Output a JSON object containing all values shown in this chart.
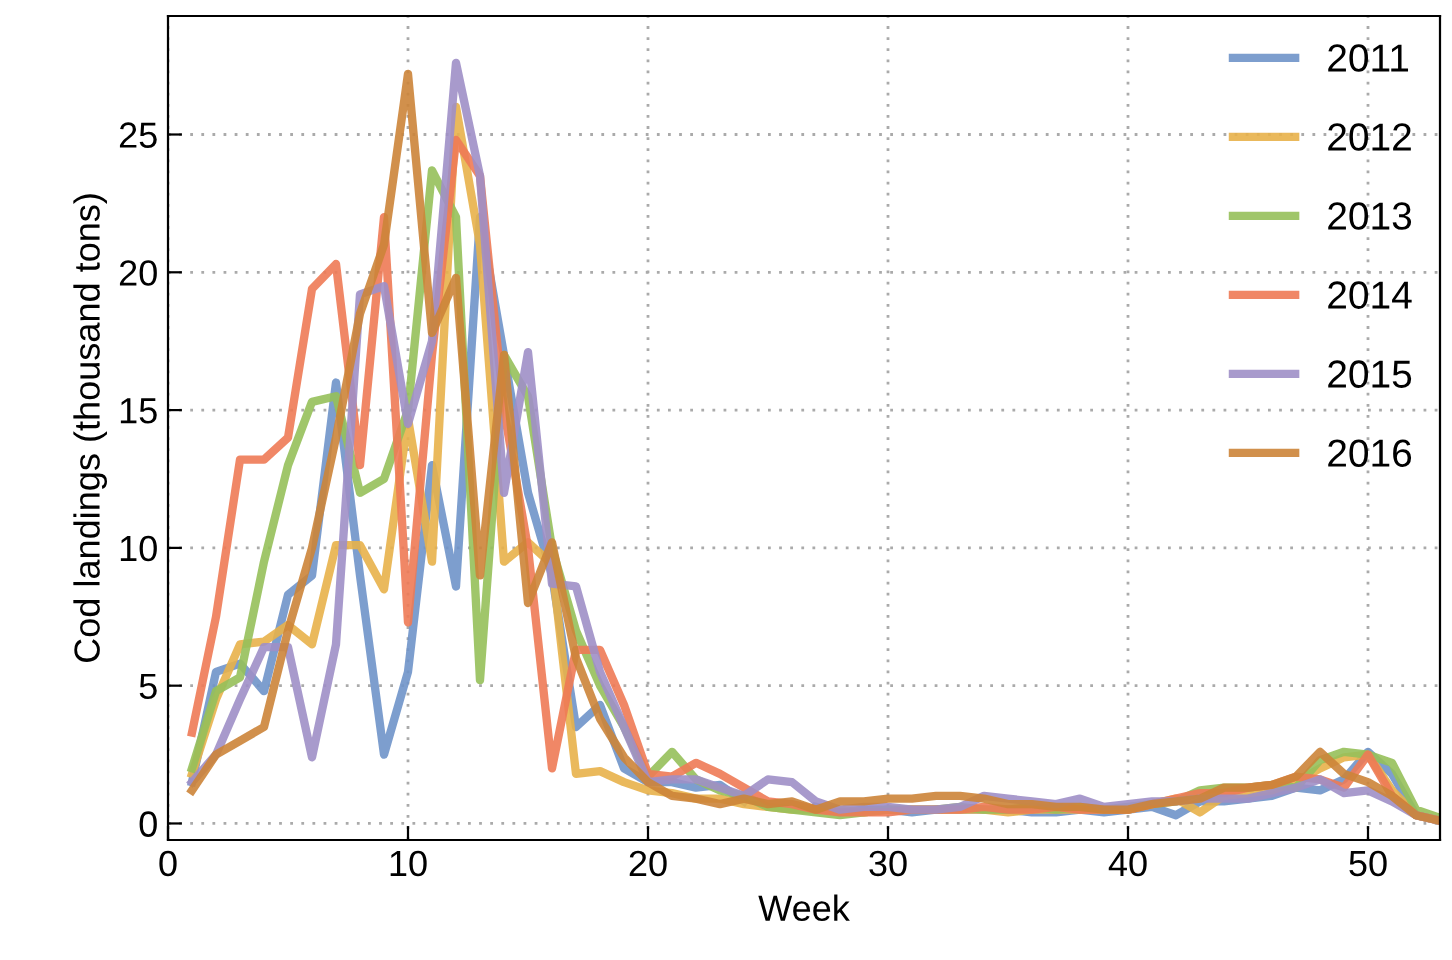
{
  "chart_data": {
    "type": "line",
    "xlabel": "Week",
    "ylabel": "Cod landings (thousand tons)",
    "x": [
      1,
      2,
      3,
      4,
      5,
      6,
      7,
      8,
      9,
      10,
      11,
      12,
      13,
      14,
      15,
      16,
      17,
      18,
      19,
      20,
      21,
      22,
      23,
      24,
      25,
      26,
      27,
      28,
      29,
      30,
      31,
      32,
      33,
      34,
      35,
      36,
      37,
      38,
      39,
      40,
      41,
      42,
      43,
      44,
      45,
      46,
      47,
      48,
      49,
      50,
      51,
      52,
      53
    ],
    "xlim": [
      0,
      53
    ],
    "ylim": [
      -0.6,
      29.3
    ],
    "xticks": [
      0,
      10,
      20,
      30,
      40,
      50
    ],
    "yticks": [
      0,
      5,
      10,
      15,
      20,
      25
    ],
    "grid": true,
    "legend": "top right",
    "line_style": "solid",
    "marker": "none",
    "series": [
      {
        "name": "2011",
        "color": "#6f93c9",
        "values": [
          1.5,
          5.5,
          5.8,
          4.8,
          8.3,
          9,
          16,
          9,
          2.5,
          5.5,
          13,
          8.6,
          22,
          17,
          12,
          9,
          3.5,
          4.3,
          2,
          1.5,
          1.5,
          1.3,
          1.4,
          0.8,
          null,
          null,
          0.6,
          0.4,
          0.5,
          0.5,
          0.4,
          0.5,
          0.5,
          0.5,
          0.5,
          0.4,
          0.4,
          0.5,
          0.4,
          0.5,
          0.6,
          0.3,
          0.8,
          0.8,
          0.9,
          1.0,
          1.3,
          1.2,
          1.6,
          2.6,
          1.8,
          0.3,
          0.1
        ]
      },
      {
        "name": "2012",
        "color": "#e8b14a",
        "values": [
          1.8,
          4.5,
          6.5,
          6.6,
          7.2,
          6.5,
          10.1,
          10.1,
          8.5,
          14.7,
          9.5,
          26,
          21,
          9.5,
          10.2,
          9.4,
          1.8,
          1.9,
          1.5,
          1.2,
          1.1,
          0.9,
          0.9,
          0.7,
          0.6,
          0.5,
          0.5,
          0.5,
          0.4,
          0.5,
          0.5,
          0.5,
          0.5,
          0.5,
          0.4,
          0.5,
          0.5,
          0.5,
          0.5,
          0.5,
          0.7,
          0.9,
          0.4,
          1.0,
          1.1,
          1.2,
          1.5,
          2.0,
          2.4,
          2.5,
          1.2,
          0.3,
          0.1
        ]
      },
      {
        "name": "2013",
        "color": "#96c05a",
        "values": [
          2,
          4.8,
          5.3,
          9.5,
          13,
          15.3,
          15.5,
          12,
          12.5,
          15,
          23.7,
          22,
          5.2,
          17,
          15.5,
          10,
          7,
          5,
          3.5,
          1.7,
          2.6,
          1.6,
          1.2,
          1.0,
          0.6,
          0.5,
          0.4,
          0.3,
          0.4,
          0.5,
          0.5,
          0.5,
          0.6,
          0.5,
          0.5,
          0.6,
          0.5,
          0.6,
          0.5,
          0.6,
          0.7,
          0.8,
          1.2,
          1.3,
          1.3,
          1.4,
          1.3,
          2.3,
          2.6,
          2.5,
          2.2,
          0.5,
          0.2
        ]
      },
      {
        "name": "2014",
        "color": "#ee7a55",
        "values": [
          3.3,
          7.5,
          13.2,
          13.2,
          14,
          19.4,
          20.3,
          13,
          22,
          7.3,
          17,
          24.8,
          23.5,
          15,
          10,
          2,
          6.3,
          6.3,
          4.3,
          1.8,
          1.7,
          2.2,
          1.8,
          1.3,
          0.8,
          0.7,
          0.5,
          0.4,
          0.4,
          0.4,
          0.5,
          0.5,
          0.5,
          0.6,
          0.5,
          0.5,
          0.6,
          0.5,
          0.5,
          0.5,
          0.7,
          0.9,
          1.1,
          1.1,
          1.3,
          1.4,
          1.7,
          1.6,
          1.3,
          2.5,
          1.0,
          0.3,
          0.1
        ]
      },
      {
        "name": "2015",
        "color": "#9e8fc6",
        "values": [
          1.5,
          2.5,
          4.5,
          6.4,
          6.4,
          2.4,
          6.5,
          19.2,
          19.5,
          14.5,
          17.5,
          27.6,
          23.5,
          12,
          17.1,
          8.7,
          8.6,
          5.5,
          3.5,
          1.5,
          1.6,
          1.6,
          1.3,
          1.0,
          1.6,
          1.5,
          0.8,
          0.5,
          0.6,
          0.6,
          0.5,
          0.5,
          0.6,
          1.0,
          0.9,
          0.8,
          0.7,
          0.9,
          0.6,
          0.7,
          0.8,
          0.8,
          0.9,
          0.9,
          0.9,
          1.1,
          1.3,
          1.6,
          1.1,
          1.2,
          0.8,
          0.3,
          0.1
        ]
      },
      {
        "name": "2016",
        "color": "#cc8438",
        "values": [
          1.2,
          2.5,
          3,
          3.5,
          7,
          10,
          14,
          18.5,
          21,
          27.2,
          17.8,
          19.8,
          9,
          17,
          8,
          10.2,
          6,
          3.8,
          2.4,
          1.5,
          1.0,
          0.9,
          0.7,
          0.9,
          0.7,
          0.8,
          0.5,
          0.8,
          0.8,
          0.9,
          0.9,
          1.0,
          1.0,
          0.9,
          0.7,
          0.7,
          0.6,
          0.6,
          0.5,
          0.5,
          0.7,
          0.8,
          0.9,
          1.3,
          1.3,
          1.4,
          1.7,
          2.6,
          1.8,
          1.5,
          1.0,
          0.3,
          0.1
        ]
      }
    ]
  }
}
